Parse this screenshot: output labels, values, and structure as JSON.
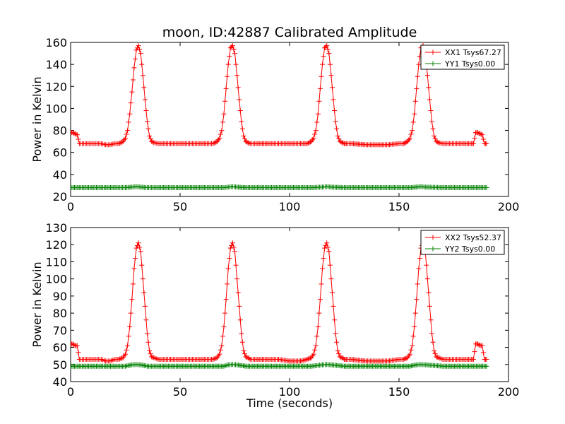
{
  "title": "moon, ID:42887 Calibrated Amplitude",
  "xlabel": "Time (seconds)",
  "chart_data": [
    {
      "type": "line",
      "ylabel": "Power in Kelvin",
      "xlim": [
        0,
        200
      ],
      "ylim": [
        20,
        160
      ],
      "xticks": [
        0,
        50,
        100,
        150,
        200
      ],
      "yticks": [
        20,
        40,
        60,
        80,
        100,
        120,
        140,
        160
      ],
      "grid": false,
      "legend_position": "top-right",
      "series": [
        {
          "name": "XX1 Tsys67.27",
          "color": "#ff0000",
          "marker": "+",
          "x": [
            0,
            1,
            2,
            3,
            3.5,
            4,
            6,
            8,
            10,
            12,
            14,
            16,
            18,
            20,
            22,
            23,
            24,
            25,
            26,
            27,
            28,
            29,
            30,
            31,
            32,
            33,
            34,
            35,
            36,
            37,
            38,
            40,
            45,
            50,
            55,
            60,
            63,
            65,
            66,
            67,
            68,
            69,
            70,
            71,
            72,
            73,
            74,
            75,
            76,
            77,
            78,
            79,
            80,
            81,
            82,
            84,
            90,
            95,
            100,
            105,
            108,
            109,
            110,
            111,
            112,
            113,
            114,
            115,
            116,
            117,
            118,
            119,
            120,
            121,
            122,
            123,
            124,
            125,
            126,
            128,
            135,
            140,
            145,
            150,
            152,
            153,
            154,
            155,
            156,
            157,
            158,
            159,
            160,
            161,
            162,
            163,
            164,
            165,
            166,
            167,
            168,
            170,
            175,
            180,
            183,
            184,
            185,
            186,
            187,
            188,
            189,
            190
          ],
          "y": [
            78,
            78,
            77,
            76,
            72,
            68,
            68,
            68,
            68,
            68,
            68,
            67,
            67,
            68,
            68,
            69,
            70,
            73,
            80,
            95,
            115,
            137,
            153,
            157,
            150,
            130,
            108,
            88,
            75,
            70,
            69,
            68,
            68,
            68,
            68,
            68,
            68,
            68,
            69,
            70,
            73,
            80,
            95,
            118,
            140,
            155,
            157,
            150,
            130,
            108,
            88,
            75,
            70,
            69,
            68,
            68,
            68,
            68,
            68,
            68,
            68,
            69,
            70,
            73,
            80,
            95,
            118,
            140,
            155,
            157,
            150,
            130,
            108,
            88,
            75,
            70,
            69,
            68,
            68,
            68,
            67,
            67,
            67,
            68,
            68,
            69,
            70,
            73,
            80,
            95,
            118,
            140,
            155,
            157,
            150,
            130,
            108,
            88,
            75,
            70,
            69,
            68,
            68,
            68,
            68,
            68,
            78,
            78,
            77,
            76,
            68,
            68
          ]
        },
        {
          "name": "YY1 Tsys0.00",
          "color": "#008000",
          "marker": "+",
          "x": [
            0,
            10,
            20,
            25,
            28,
            30,
            32,
            35,
            40,
            50,
            60,
            70,
            72,
            74,
            76,
            80,
            90,
            100,
            110,
            115,
            117,
            119,
            125,
            135,
            145,
            155,
            158,
            160,
            162,
            170,
            180,
            190
          ],
          "y": [
            28,
            28,
            28,
            28,
            28.5,
            29,
            28.5,
            28,
            28,
            28,
            28,
            28,
            28.5,
            29,
            28.5,
            28,
            28,
            28,
            28,
            28.5,
            29,
            28.5,
            28,
            28,
            28,
            28,
            28.5,
            29,
            28.5,
            28,
            28,
            28
          ]
        }
      ]
    },
    {
      "type": "line",
      "ylabel": "Power in Kelvin",
      "xlabel": "Time (seconds)",
      "xlim": [
        0,
        200
      ],
      "ylim": [
        40,
        130
      ],
      "xticks": [
        0,
        50,
        100,
        150,
        200
      ],
      "yticks": [
        40,
        50,
        60,
        70,
        80,
        90,
        100,
        110,
        120,
        130
      ],
      "grid": false,
      "legend_position": "top-right",
      "series": [
        {
          "name": "XX2 Tsys52.37",
          "color": "#ff0000",
          "marker": "+",
          "x": [
            0,
            1,
            2,
            3,
            3.5,
            4,
            6,
            8,
            10,
            12,
            14,
            16,
            18,
            20,
            22,
            23,
            24,
            25,
            26,
            27,
            28,
            29,
            30,
            31,
            32,
            33,
            34,
            35,
            36,
            37,
            38,
            40,
            45,
            50,
            55,
            60,
            63,
            65,
            66,
            67,
            68,
            69,
            70,
            71,
            72,
            73,
            74,
            75,
            76,
            77,
            78,
            79,
            80,
            81,
            82,
            84,
            90,
            95,
            100,
            105,
            108,
            109,
            110,
            111,
            112,
            113,
            114,
            115,
            116,
            117,
            118,
            119,
            120,
            121,
            122,
            123,
            124,
            125,
            126,
            128,
            135,
            140,
            145,
            150,
            152,
            153,
            154,
            155,
            156,
            157,
            158,
            159,
            160,
            161,
            162,
            163,
            164,
            165,
            166,
            167,
            168,
            170,
            175,
            180,
            183,
            184,
            185,
            186,
            187,
            188,
            189,
            190
          ],
          "y": [
            62,
            62,
            61,
            61,
            57,
            53,
            53,
            53,
            53,
            53,
            53,
            52,
            52,
            53,
            53,
            53.5,
            54,
            56,
            61,
            72,
            88,
            106,
            118,
            121,
            116,
            100,
            84,
            68,
            58,
            54.5,
            54,
            53,
            53,
            53,
            53,
            53,
            53,
            53,
            53.5,
            54,
            56,
            61,
            72,
            88,
            106,
            118,
            121,
            116,
            100,
            84,
            68,
            58,
            54.5,
            54,
            53,
            53,
            53,
            53,
            52,
            52,
            53,
            53.5,
            54,
            56,
            61,
            72,
            88,
            106,
            118,
            121,
            116,
            100,
            84,
            68,
            58,
            54.5,
            54,
            53,
            53,
            53,
            52,
            52,
            52,
            53,
            53,
            53.5,
            54,
            56,
            61,
            72,
            88,
            106,
            118,
            121,
            116,
            100,
            84,
            68,
            58,
            54.5,
            54,
            53,
            53,
            53,
            53,
            53,
            62,
            62,
            61,
            61,
            53,
            53
          ]
        },
        {
          "name": "YY2 Tsys0.00",
          "color": "#008000",
          "marker": "+",
          "x": [
            0,
            10,
            20,
            25,
            28,
            30,
            32,
            35,
            40,
            50,
            60,
            70,
            72,
            74,
            76,
            80,
            90,
            100,
            110,
            115,
            117,
            119,
            125,
            135,
            145,
            155,
            158,
            160,
            162,
            170,
            180,
            190
          ],
          "y": [
            49,
            49,
            49,
            49,
            49.8,
            50,
            49.8,
            49,
            49,
            49,
            49,
            49,
            49.8,
            50,
            49.8,
            49,
            49,
            49,
            49,
            49.8,
            50,
            49.8,
            49,
            49,
            49,
            49,
            49.8,
            50,
            49.8,
            49,
            49,
            49
          ]
        }
      ]
    }
  ]
}
